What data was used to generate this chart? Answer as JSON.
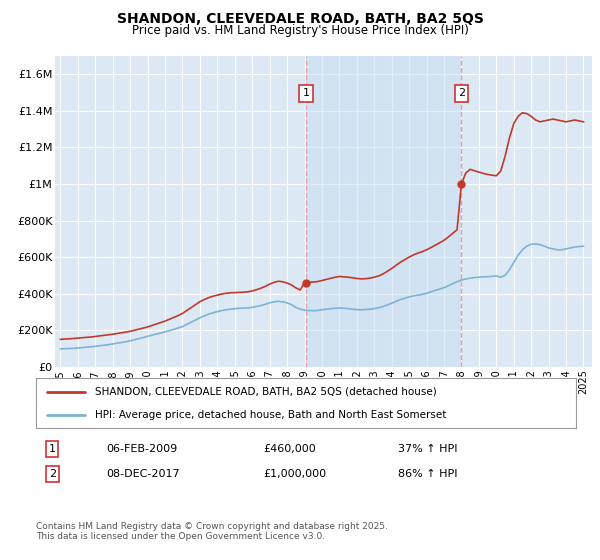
{
  "title": "SHANDON, CLEEVEDALE ROAD, BATH, BA2 5QS",
  "subtitle": "Price paid vs. HM Land Registry's House Price Index (HPI)",
  "background_color": "#ffffff",
  "plot_bg_color": "#dce9f5",
  "plot_bg_shaded": "#c8ddf0",
  "grid_color": "#ffffff",
  "sale1_x": 2009.1,
  "sale1_label": "06-FEB-2009",
  "sale1_price": 460000,
  "sale1_price_str": "£460,000",
  "sale1_pct": "37%",
  "sale2_x": 2018.0,
  "sale2_label": "08-DEC-2017",
  "sale2_price": 1000000,
  "sale2_price_str": "£1,000,000",
  "sale2_pct": "86%",
  "red_line_color": "#c0392b",
  "blue_line_color": "#7fb3d3",
  "vline_color": "#e8a0a0",
  "dot_color": "#c0392b",
  "legend1": "SHANDON, CLEEVEDALE ROAD, BATH, BA2 5QS (detached house)",
  "legend2": "HPI: Average price, detached house, Bath and North East Somerset",
  "footnote1": "Contains HM Land Registry data © Crown copyright and database right 2025.",
  "footnote2": "This data is licensed under the Open Government Licence v3.0.",
  "ylim": [
    0,
    1700000
  ],
  "yticks": [
    0,
    200000,
    400000,
    600000,
    800000,
    1000000,
    1200000,
    1400000,
    1600000
  ],
  "ytick_labels": [
    "£0",
    "£200K",
    "£400K",
    "£600K",
    "£800K",
    "£1M",
    "£1.2M",
    "£1.4M",
    "£1.6M"
  ],
  "hpi_x": [
    1995.0,
    1995.25,
    1995.5,
    1995.75,
    1996.0,
    1996.25,
    1996.5,
    1996.75,
    1997.0,
    1997.25,
    1997.5,
    1997.75,
    1998.0,
    1998.25,
    1998.5,
    1998.75,
    1999.0,
    1999.25,
    1999.5,
    1999.75,
    2000.0,
    2000.25,
    2000.5,
    2000.75,
    2001.0,
    2001.25,
    2001.5,
    2001.75,
    2002.0,
    2002.25,
    2002.5,
    2002.75,
    2003.0,
    2003.25,
    2003.5,
    2003.75,
    2004.0,
    2004.25,
    2004.5,
    2004.75,
    2005.0,
    2005.25,
    2005.5,
    2005.75,
    2006.0,
    2006.25,
    2006.5,
    2006.75,
    2007.0,
    2007.25,
    2007.5,
    2007.75,
    2008.0,
    2008.25,
    2008.5,
    2008.75,
    2009.0,
    2009.25,
    2009.5,
    2009.75,
    2010.0,
    2010.25,
    2010.5,
    2010.75,
    2011.0,
    2011.25,
    2011.5,
    2011.75,
    2012.0,
    2012.25,
    2012.5,
    2012.75,
    2013.0,
    2013.25,
    2013.5,
    2013.75,
    2014.0,
    2014.25,
    2014.5,
    2014.75,
    2015.0,
    2015.25,
    2015.5,
    2015.75,
    2016.0,
    2016.25,
    2016.5,
    2016.75,
    2017.0,
    2017.25,
    2017.5,
    2017.75,
    2018.0,
    2018.25,
    2018.5,
    2018.75,
    2019.0,
    2019.25,
    2019.5,
    2019.75,
    2020.0,
    2020.25,
    2020.5,
    2020.75,
    2021.0,
    2021.25,
    2021.5,
    2021.75,
    2022.0,
    2022.25,
    2022.5,
    2022.75,
    2023.0,
    2023.25,
    2023.5,
    2023.75,
    2024.0,
    2024.25,
    2024.5,
    2024.75,
    2025.0
  ],
  "hpi_y": [
    98000,
    99000,
    100000,
    101000,
    103000,
    105000,
    107000,
    109000,
    112000,
    115000,
    118000,
    121000,
    125000,
    129000,
    133000,
    137000,
    142000,
    148000,
    154000,
    160000,
    167000,
    173000,
    179000,
    185000,
    191000,
    198000,
    205000,
    212000,
    220000,
    232000,
    244000,
    256000,
    268000,
    278000,
    288000,
    295000,
    302000,
    308000,
    312000,
    315000,
    318000,
    320000,
    321000,
    322000,
    325000,
    330000,
    335000,
    342000,
    350000,
    355000,
    358000,
    355000,
    350000,
    340000,
    325000,
    315000,
    310000,
    308000,
    307000,
    308000,
    312000,
    315000,
    318000,
    320000,
    322000,
    320000,
    318000,
    315000,
    313000,
    312000,
    313000,
    315000,
    318000,
    323000,
    330000,
    338000,
    348000,
    358000,
    368000,
    375000,
    382000,
    388000,
    392000,
    396000,
    402000,
    410000,
    418000,
    425000,
    433000,
    443000,
    455000,
    465000,
    475000,
    480000,
    485000,
    488000,
    490000,
    492000,
    493000,
    495000,
    497000,
    490000,
    500000,
    530000,
    570000,
    610000,
    640000,
    660000,
    670000,
    672000,
    668000,
    660000,
    650000,
    645000,
    640000,
    640000,
    645000,
    650000,
    655000,
    658000,
    660000
  ],
  "red_x": [
    1995.0,
    1995.25,
    1995.5,
    1995.75,
    1996.0,
    1996.25,
    1996.5,
    1996.75,
    1997.0,
    1997.25,
    1997.5,
    1997.75,
    1998.0,
    1998.25,
    1998.5,
    1998.75,
    1999.0,
    1999.25,
    1999.5,
    1999.75,
    2000.0,
    2000.25,
    2000.5,
    2000.75,
    2001.0,
    2001.25,
    2001.5,
    2001.75,
    2002.0,
    2002.25,
    2002.5,
    2002.75,
    2003.0,
    2003.25,
    2003.5,
    2003.75,
    2004.0,
    2004.25,
    2004.5,
    2004.75,
    2005.0,
    2005.25,
    2005.5,
    2005.75,
    2006.0,
    2006.25,
    2006.5,
    2006.75,
    2007.0,
    2007.25,
    2007.5,
    2007.75,
    2008.0,
    2008.25,
    2008.5,
    2008.75,
    2009.0,
    2009.25,
    2009.5,
    2009.75,
    2010.0,
    2010.25,
    2010.5,
    2010.75,
    2011.0,
    2011.25,
    2011.5,
    2011.75,
    2012.0,
    2012.25,
    2012.5,
    2012.75,
    2013.0,
    2013.25,
    2013.5,
    2013.75,
    2014.0,
    2014.25,
    2014.5,
    2014.75,
    2015.0,
    2015.25,
    2015.5,
    2015.75,
    2016.0,
    2016.25,
    2016.5,
    2016.75,
    2017.0,
    2017.25,
    2017.5,
    2017.75,
    2018.0,
    2018.25,
    2018.5,
    2018.75,
    2019.0,
    2019.25,
    2019.5,
    2019.75,
    2020.0,
    2020.25,
    2020.5,
    2020.75,
    2021.0,
    2021.25,
    2021.5,
    2021.75,
    2022.0,
    2022.25,
    2022.5,
    2022.75,
    2023.0,
    2023.25,
    2023.5,
    2023.75,
    2024.0,
    2024.25,
    2024.5,
    2024.75,
    2025.0
  ],
  "red_y": [
    150000,
    152000,
    153000,
    155000,
    157000,
    159000,
    161000,
    163000,
    166000,
    169000,
    172000,
    175000,
    178000,
    182000,
    186000,
    190000,
    194000,
    200000,
    206000,
    212000,
    218000,
    226000,
    234000,
    242000,
    250000,
    260000,
    270000,
    280000,
    292000,
    308000,
    324000,
    340000,
    356000,
    368000,
    378000,
    386000,
    392000,
    398000,
    402000,
    405000,
    406000,
    407000,
    408000,
    410000,
    415000,
    422000,
    430000,
    440000,
    452000,
    462000,
    468000,
    465000,
    458000,
    448000,
    432000,
    420000,
    460000,
    462000,
    464000,
    466000,
    472000,
    478000,
    484000,
    490000,
    494000,
    492000,
    490000,
    487000,
    483000,
    481000,
    482000,
    485000,
    490000,
    497000,
    508000,
    522000,
    538000,
    555000,
    572000,
    586000,
    600000,
    612000,
    622000,
    630000,
    640000,
    652000,
    665000,
    678000,
    692000,
    710000,
    730000,
    750000,
    1000000,
    1060000,
    1080000,
    1072000,
    1065000,
    1058000,
    1052000,
    1048000,
    1045000,
    1070000,
    1150000,
    1250000,
    1330000,
    1370000,
    1390000,
    1385000,
    1370000,
    1350000,
    1340000,
    1345000,
    1350000,
    1355000,
    1350000,
    1345000,
    1340000,
    1345000,
    1350000,
    1345000,
    1340000
  ]
}
